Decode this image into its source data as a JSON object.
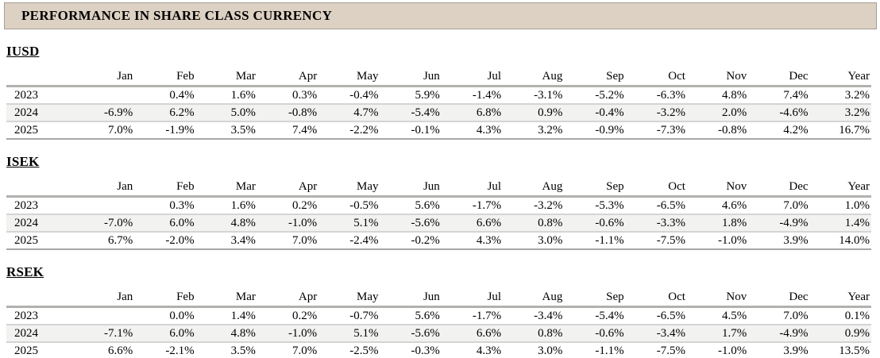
{
  "header": {
    "title": "PERFORMANCE IN SHARE CLASS CURRENCY"
  },
  "colors": {
    "titlebar_background": "#ddd1c3",
    "titlebar_border": "#a49e93",
    "striped_row_background": "#f2f2f1",
    "header_rule": "#b3b1ae",
    "row_rule": "#d4d4d4"
  },
  "sections": [
    {
      "title": "IUSD",
      "columns": [
        "Jan",
        "Feb",
        "Mar",
        "Apr",
        "May",
        "Jun",
        "Jul",
        "Aug",
        "Sep",
        "Oct",
        "Nov",
        "Dec",
        "Year"
      ],
      "rows": [
        {
          "label": "2023",
          "values": [
            "",
            "0.4%",
            "1.6%",
            "0.3%",
            "-0.4%",
            "5.9%",
            "-1.4%",
            "-3.1%",
            "-5.2%",
            "-6.3%",
            "4.8%",
            "7.4%",
            "3.2%"
          ]
        },
        {
          "label": "2024",
          "values": [
            "-6.9%",
            "6.2%",
            "5.0%",
            "-0.8%",
            "4.7%",
            "-5.4%",
            "6.8%",
            "0.9%",
            "-0.4%",
            "-3.2%",
            "2.0%",
            "-4.6%",
            "3.2%"
          ]
        },
        {
          "label": "2025",
          "values": [
            "7.0%",
            "-1.9%",
            "3.5%",
            "7.4%",
            "-2.2%",
            "-0.1%",
            "4.3%",
            "3.2%",
            "-0.9%",
            "-7.3%",
            "-0.8%",
            "4.2%",
            "16.7%"
          ]
        }
      ]
    },
    {
      "title": "ISEK",
      "columns": [
        "Jan",
        "Feb",
        "Mar",
        "Apr",
        "May",
        "Jun",
        "Jul",
        "Aug",
        "Sep",
        "Oct",
        "Nov",
        "Dec",
        "Year"
      ],
      "rows": [
        {
          "label": "2023",
          "values": [
            "",
            "0.3%",
            "1.6%",
            "0.2%",
            "-0.5%",
            "5.6%",
            "-1.7%",
            "-3.2%",
            "-5.3%",
            "-6.5%",
            "4.6%",
            "7.0%",
            "1.0%"
          ]
        },
        {
          "label": "2024",
          "values": [
            "-7.0%",
            "6.0%",
            "4.8%",
            "-1.0%",
            "5.1%",
            "-5.6%",
            "6.6%",
            "0.8%",
            "-0.6%",
            "-3.3%",
            "1.8%",
            "-4.9%",
            "1.4%"
          ]
        },
        {
          "label": "2025",
          "values": [
            "6.7%",
            "-2.0%",
            "3.4%",
            "7.0%",
            "-2.4%",
            "-0.2%",
            "4.3%",
            "3.0%",
            "-1.1%",
            "-7.5%",
            "-1.0%",
            "3.9%",
            "14.0%"
          ]
        }
      ]
    },
    {
      "title": "RSEK",
      "columns": [
        "Jan",
        "Feb",
        "Mar",
        "Apr",
        "May",
        "Jun",
        "Jul",
        "Aug",
        "Sep",
        "Oct",
        "Nov",
        "Dec",
        "Year"
      ],
      "rows": [
        {
          "label": "2023",
          "values": [
            "",
            "0.0%",
            "1.4%",
            "0.2%",
            "-0.7%",
            "5.6%",
            "-1.7%",
            "-3.4%",
            "-5.4%",
            "-6.5%",
            "4.5%",
            "7.0%",
            "0.1%"
          ]
        },
        {
          "label": "2024",
          "values": [
            "-7.1%",
            "6.0%",
            "4.8%",
            "-1.0%",
            "5.1%",
            "-5.6%",
            "6.6%",
            "0.8%",
            "-0.6%",
            "-3.4%",
            "1.7%",
            "-4.9%",
            "0.9%"
          ]
        },
        {
          "label": "2025",
          "values": [
            "6.6%",
            "-2.1%",
            "3.5%",
            "7.0%",
            "-2.5%",
            "-0.3%",
            "4.3%",
            "3.0%",
            "-1.1%",
            "-7.5%",
            "-1.0%",
            "3.9%",
            "13.5%"
          ]
        }
      ]
    }
  ]
}
